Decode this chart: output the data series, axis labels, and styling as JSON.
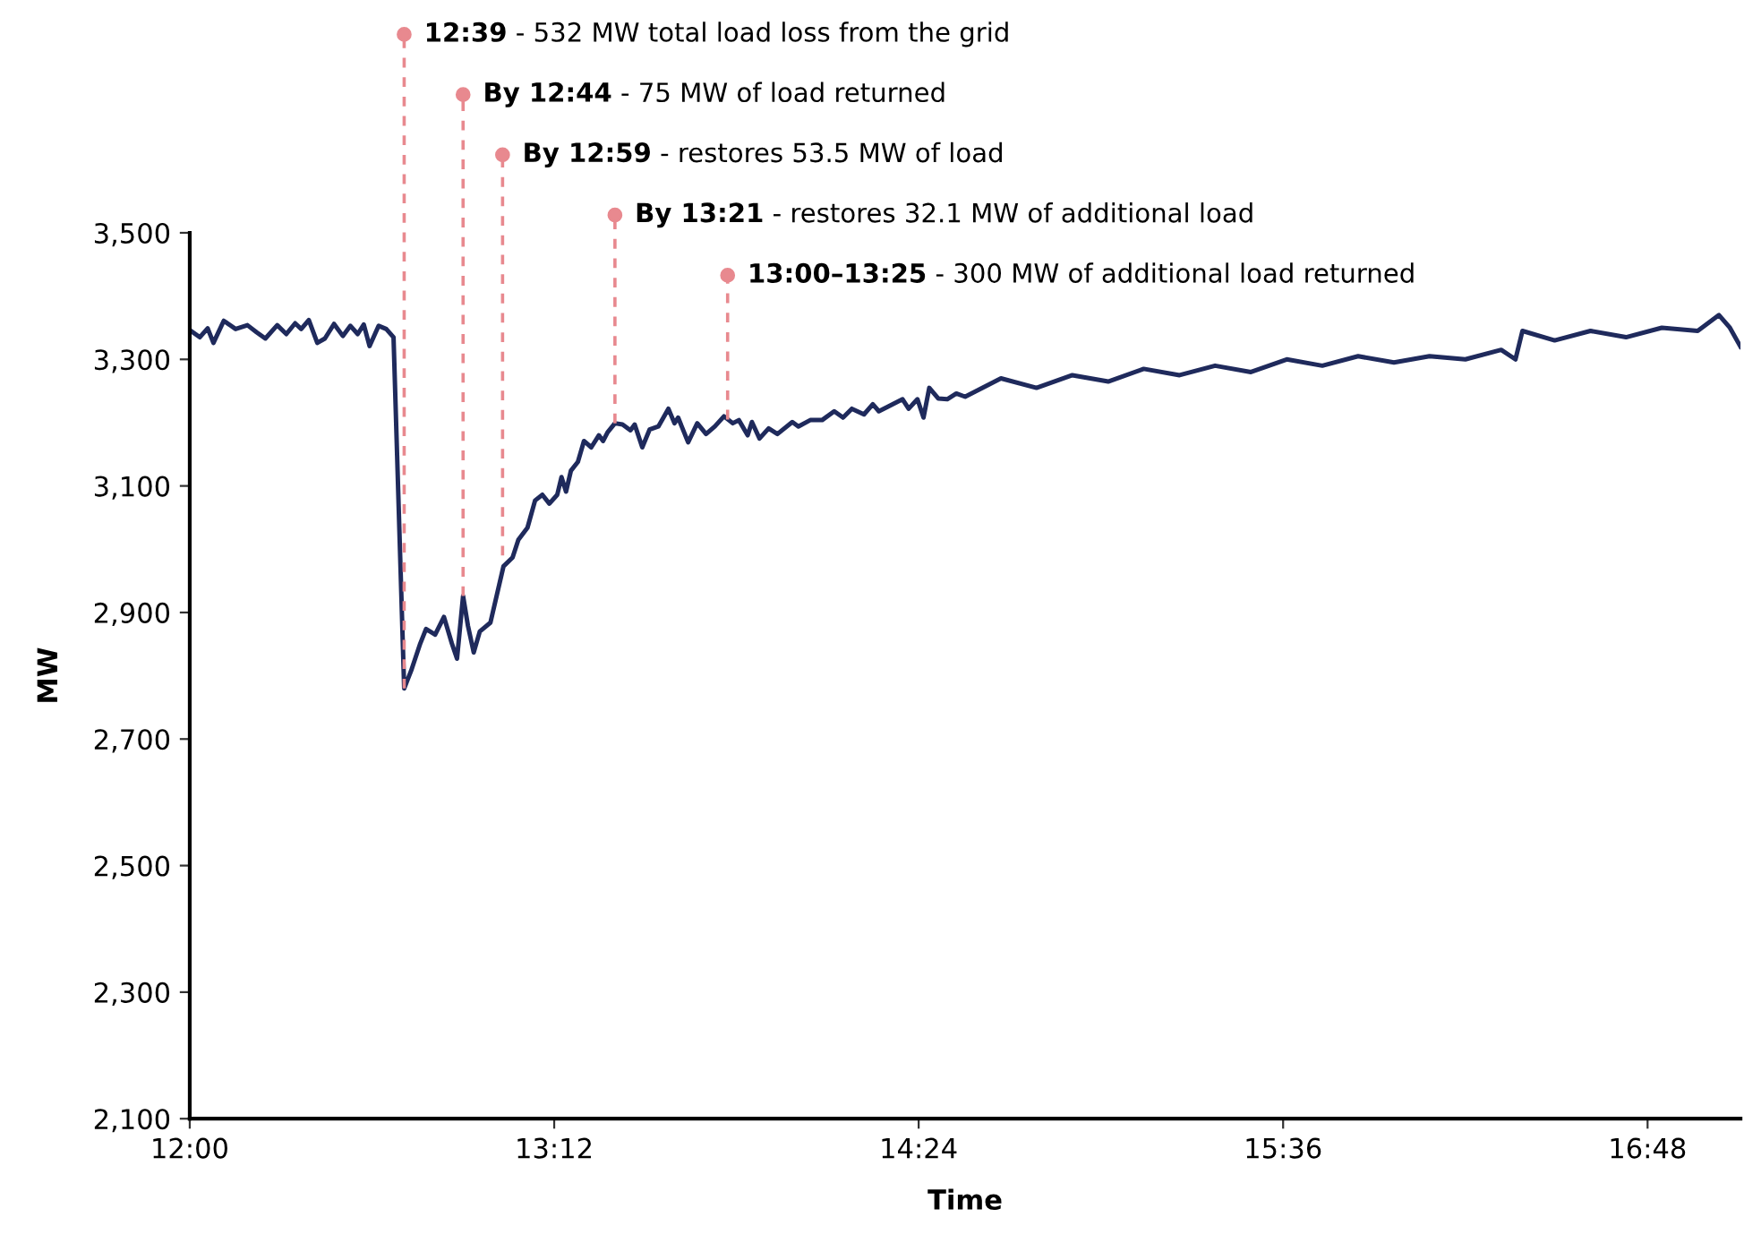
{
  "chart_data": {
    "type": "line",
    "xlabel": "Time",
    "ylabel": "MW",
    "xlim": [
      12,
      17.106
    ],
    "xticks": [
      {
        "value": 12,
        "label": "12:00"
      },
      {
        "value": 13.2,
        "label": "13:12"
      },
      {
        "value": 14.4,
        "label": "14:24"
      },
      {
        "value": 15.6,
        "label": "15:36"
      },
      {
        "value": 16.8,
        "label": "16:48"
      }
    ],
    "ylim": [
      2100,
      3500
    ],
    "yticks": [
      {
        "value": 2100,
        "label": "2,100"
      },
      {
        "value": 2300,
        "label": "2,300"
      },
      {
        "value": 2500,
        "label": "2,500"
      },
      {
        "value": 2700,
        "label": "2,700"
      },
      {
        "value": 2900,
        "label": "2,900"
      },
      {
        "value": 3100,
        "label": "3,100"
      },
      {
        "value": 3300,
        "label": "3,300"
      },
      {
        "value": 3500,
        "label": "3,500"
      }
    ],
    "grid": false,
    "legend": false,
    "marker": "none",
    "line_style": "solid",
    "annotations": [
      {
        "text": "12:39 - 532 MW total load loss from the grid",
        "x": 12.706,
        "y": 2780
      },
      {
        "text": "By 12:44 - 75 MW of load returned",
        "x": 12.9,
        "y": 2926
      },
      {
        "text": "By 12:59 - restores 53.5 MW of load",
        "x": 13.03,
        "y": 2990
      },
      {
        "text": "By 13:21 - restores 32.1 MW of additional load",
        "x": 13.4,
        "y": 3199
      },
      {
        "text": "13:00–13:25 - 300 MW of additional load returned",
        "x": 13.771,
        "y": 3205
      }
    ],
    "series": [
      {
        "color": "#1f2a5c",
        "x": [
          12.004,
          12.033,
          12.059,
          12.078,
          12.112,
          12.151,
          12.19,
          12.22,
          12.249,
          12.288,
          12.318,
          12.347,
          12.367,
          12.392,
          12.42,
          12.445,
          12.475,
          12.504,
          12.529,
          12.553,
          12.573,
          12.592,
          12.622,
          12.647,
          12.671,
          12.706,
          12.729,
          12.759,
          12.778,
          12.808,
          12.837,
          12.863,
          12.88,
          12.9,
          12.916,
          12.935,
          12.955,
          12.99,
          13.033,
          13.063,
          13.082,
          13.112,
          13.137,
          13.161,
          13.184,
          13.21,
          13.224,
          13.239,
          13.255,
          13.278,
          13.298,
          13.322,
          13.347,
          13.361,
          13.376,
          13.4,
          13.425,
          13.451,
          13.465,
          13.49,
          13.514,
          13.543,
          13.576,
          13.596,
          13.608,
          13.641,
          13.671,
          13.7,
          13.729,
          13.759,
          13.788,
          13.808,
          13.837,
          13.851,
          13.876,
          13.906,
          13.935,
          13.984,
          14.004,
          14.043,
          14.082,
          14.122,
          14.151,
          14.18,
          14.22,
          14.249,
          14.269,
          14.298,
          14.347,
          14.367,
          14.396,
          14.416,
          14.435,
          14.465,
          14.494,
          14.524,
          14.553,
          14.671,
          14.788,
          14.906,
          15.024,
          15.141,
          15.259,
          15.376,
          15.494,
          15.612,
          15.729,
          15.847,
          15.965,
          16.082,
          16.2,
          16.318,
          16.365,
          16.388,
          16.494,
          16.612,
          16.729,
          16.847,
          16.965,
          17.035,
          17.071,
          17.106
        ],
        "values": [
          3345,
          3335,
          3349,
          3326,
          3361,
          3348,
          3354,
          3343,
          3333,
          3354,
          3340,
          3357,
          3348,
          3362,
          3326,
          3333,
          3356,
          3337,
          3353,
          3340,
          3355,
          3321,
          3353,
          3348,
          3335,
          2780,
          2808,
          2851,
          2874,
          2865,
          2893,
          2851,
          2827,
          2926,
          2879,
          2837,
          2870,
          2884,
          2973,
          2987,
          3015,
          3034,
          3077,
          3086,
          3072,
          3086,
          3114,
          3091,
          3124,
          3138,
          3171,
          3161,
          3180,
          3171,
          3185,
          3199,
          3197,
          3188,
          3197,
          3161,
          3189,
          3194,
          3222,
          3199,
          3208,
          3169,
          3199,
          3182,
          3194,
          3210,
          3199,
          3204,
          3180,
          3201,
          3175,
          3191,
          3182,
          3201,
          3194,
          3204,
          3204,
          3218,
          3208,
          3222,
          3213,
          3229,
          3218,
          3225,
          3237,
          3222,
          3237,
          3208,
          3255,
          3238,
          3237,
          3246,
          3241,
          3270,
          3255,
          3275,
          3265,
          3285,
          3275,
          3290,
          3280,
          3300,
          3290,
          3305,
          3295,
          3305,
          3300,
          3315,
          3300,
          3345,
          3330,
          3345,
          3335,
          3350,
          3345,
          3370,
          3350,
          3320
        ]
      }
    ]
  }
}
